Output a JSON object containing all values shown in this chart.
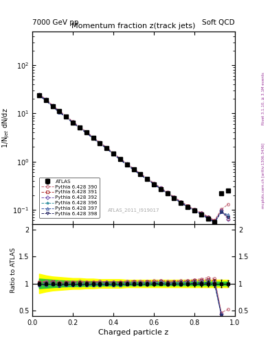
{
  "title_main": "Momentum fraction z(track jets)",
  "top_left_label": "7000 GeV pp",
  "top_right_label": "Soft QCD",
  "right_label_top": "Rivet 3.1.10, ≥ 3.1M events",
  "right_label_bottom": "mcplots.cern.ch [arXiv:1306.3436]",
  "watermark": "ATLAS_2011_I919017",
  "ylabel_main": "1/N$_{jet}$ dN/dz",
  "ylabel_ratio": "Ratio to ATLAS",
  "xlabel": "Charged particle z",
  "x_values": [
    0.033,
    0.067,
    0.1,
    0.133,
    0.167,
    0.2,
    0.233,
    0.267,
    0.3,
    0.333,
    0.367,
    0.4,
    0.433,
    0.467,
    0.5,
    0.533,
    0.567,
    0.6,
    0.633,
    0.667,
    0.7,
    0.733,
    0.767,
    0.8,
    0.833,
    0.867,
    0.9,
    0.933,
    0.967
  ],
  "atlas_values": [
    24.0,
    19.0,
    14.0,
    11.0,
    8.5,
    6.5,
    5.1,
    4.0,
    3.1,
    2.4,
    1.9,
    1.45,
    1.12,
    0.87,
    0.68,
    0.54,
    0.43,
    0.34,
    0.27,
    0.22,
    0.175,
    0.14,
    0.115,
    0.095,
    0.08,
    0.065,
    0.055,
    0.22,
    0.25
  ],
  "atlas_err": [
    0.8,
    0.6,
    0.5,
    0.4,
    0.3,
    0.25,
    0.2,
    0.15,
    0.12,
    0.09,
    0.07,
    0.055,
    0.04,
    0.032,
    0.025,
    0.02,
    0.016,
    0.013,
    0.01,
    0.009,
    0.007,
    0.006,
    0.005,
    0.005,
    0.004,
    0.004,
    0.004,
    0.015,
    0.015
  ],
  "mc_390_values": [
    24.8,
    19.8,
    14.7,
    11.3,
    8.8,
    6.75,
    5.3,
    4.15,
    3.22,
    2.5,
    1.97,
    1.5,
    1.16,
    0.91,
    0.715,
    0.565,
    0.452,
    0.358,
    0.287,
    0.23,
    0.184,
    0.148,
    0.122,
    0.102,
    0.087,
    0.072,
    0.06,
    0.102,
    0.13
  ],
  "mc_391_values": [
    24.5,
    19.5,
    14.5,
    11.1,
    8.7,
    6.65,
    5.22,
    4.08,
    3.17,
    2.46,
    1.94,
    1.48,
    1.145,
    0.893,
    0.7,
    0.553,
    0.443,
    0.351,
    0.282,
    0.225,
    0.181,
    0.145,
    0.12,
    0.1,
    0.085,
    0.07,
    0.058,
    0.097,
    0.065
  ],
  "mc_392_values": [
    24.3,
    19.3,
    14.3,
    11.0,
    8.6,
    6.58,
    5.17,
    4.04,
    3.14,
    2.44,
    1.93,
    1.47,
    1.135,
    0.886,
    0.695,
    0.55,
    0.44,
    0.349,
    0.28,
    0.223,
    0.179,
    0.144,
    0.119,
    0.099,
    0.084,
    0.069,
    0.057,
    0.095,
    0.062
  ],
  "mc_396_values": [
    23.5,
    18.7,
    13.85,
    10.65,
    8.35,
    6.38,
    5.02,
    3.93,
    3.06,
    2.37,
    1.875,
    1.43,
    1.103,
    0.862,
    0.677,
    0.536,
    0.429,
    0.341,
    0.274,
    0.218,
    0.175,
    0.14,
    0.115,
    0.096,
    0.081,
    0.066,
    0.055,
    0.092,
    0.072
  ],
  "mc_397_values": [
    23.2,
    18.5,
    13.7,
    10.5,
    8.25,
    6.3,
    4.96,
    3.88,
    3.02,
    2.34,
    1.854,
    1.41,
    1.09,
    0.852,
    0.669,
    0.53,
    0.424,
    0.337,
    0.271,
    0.215,
    0.173,
    0.138,
    0.114,
    0.095,
    0.08,
    0.065,
    0.054,
    0.09,
    0.078
  ],
  "mc_398_values": [
    23.3,
    18.6,
    13.78,
    10.58,
    8.3,
    6.34,
    4.98,
    3.9,
    3.04,
    2.36,
    1.864,
    1.42,
    1.095,
    0.856,
    0.672,
    0.532,
    0.426,
    0.338,
    0.272,
    0.216,
    0.174,
    0.139,
    0.114,
    0.096,
    0.081,
    0.066,
    0.055,
    0.091,
    0.07
  ],
  "band_yellow_lo": [
    0.82,
    0.85,
    0.87,
    0.88,
    0.89,
    0.9,
    0.9,
    0.91,
    0.91,
    0.92,
    0.92,
    0.92,
    0.92,
    0.93,
    0.93,
    0.93,
    0.93,
    0.93,
    0.93,
    0.93,
    0.93,
    0.93,
    0.93,
    0.93,
    0.93,
    0.93,
    0.93,
    0.93,
    0.93
  ],
  "band_yellow_hi": [
    1.18,
    1.15,
    1.13,
    1.12,
    1.11,
    1.1,
    1.1,
    1.09,
    1.09,
    1.08,
    1.08,
    1.08,
    1.08,
    1.07,
    1.07,
    1.07,
    1.07,
    1.07,
    1.07,
    1.07,
    1.07,
    1.07,
    1.07,
    1.07,
    1.07,
    1.07,
    1.07,
    1.07,
    1.07
  ],
  "band_green_lo": [
    0.91,
    0.92,
    0.93,
    0.94,
    0.945,
    0.95,
    0.95,
    0.955,
    0.955,
    0.96,
    0.96,
    0.96,
    0.96,
    0.965,
    0.965,
    0.965,
    0.965,
    0.965,
    0.965,
    0.965,
    0.965,
    0.965,
    0.965,
    0.965,
    0.965,
    0.965,
    0.965,
    0.965,
    0.965
  ],
  "band_green_hi": [
    1.09,
    1.08,
    1.07,
    1.06,
    1.055,
    1.05,
    1.05,
    1.045,
    1.045,
    1.04,
    1.04,
    1.04,
    1.04,
    1.035,
    1.035,
    1.035,
    1.035,
    1.035,
    1.035,
    1.035,
    1.035,
    1.035,
    1.035,
    1.035,
    1.035,
    1.035,
    1.035,
    1.035,
    1.035
  ],
  "color_390": "#c06070",
  "color_391": "#b03030",
  "color_392": "#7050b0",
  "color_396": "#3090a0",
  "color_397": "#3050a0",
  "color_398": "#202060",
  "xlim": [
    0.0,
    1.0
  ],
  "ylim_main": [
    0.05,
    500
  ],
  "ylim_ratio": [
    0.4,
    2.1
  ],
  "ratio_yticks": [
    0.5,
    1.0,
    1.5,
    2.0
  ]
}
